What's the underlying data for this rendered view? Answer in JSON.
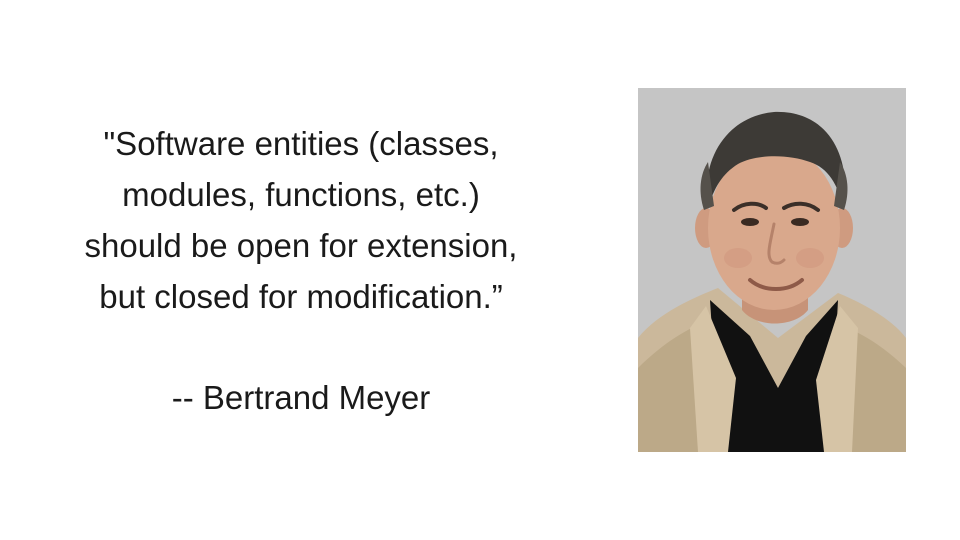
{
  "quote": {
    "lines": [
      "\"Software entities (classes,",
      "modules, functions, etc.)",
      "should be open for extension,",
      "but closed for modification.”"
    ]
  },
  "attribution": "-- Bertrand Meyer",
  "colors": {
    "background": "#ffffff",
    "text": "#1a1a1a",
    "photo_backdrop": "#c9c9c9",
    "jacket": "#cbb89b",
    "shirt": "#111111",
    "skin": "#d9a88c",
    "hair": "#3d3a36"
  }
}
